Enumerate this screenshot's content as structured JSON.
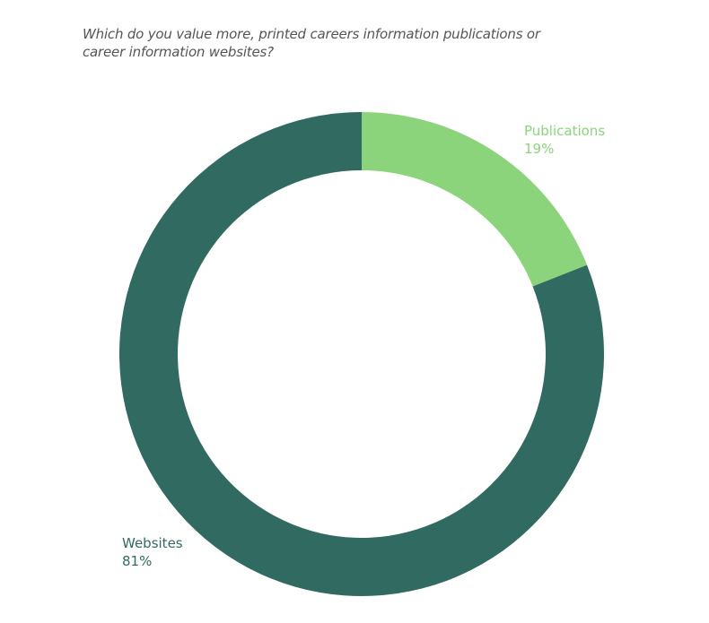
{
  "chart_data": {
    "type": "pie",
    "variant": "donut",
    "title": "Which do you value more, printed careers information publications or career information websites?",
    "slices": [
      {
        "label": "Publications",
        "value": 19,
        "value_label": "19%",
        "color": "#8bd47c"
      },
      {
        "label": "Websites",
        "value": 81,
        "value_label": "81%",
        "color": "#306a61"
      }
    ],
    "legend": "none",
    "labels": "outside"
  }
}
